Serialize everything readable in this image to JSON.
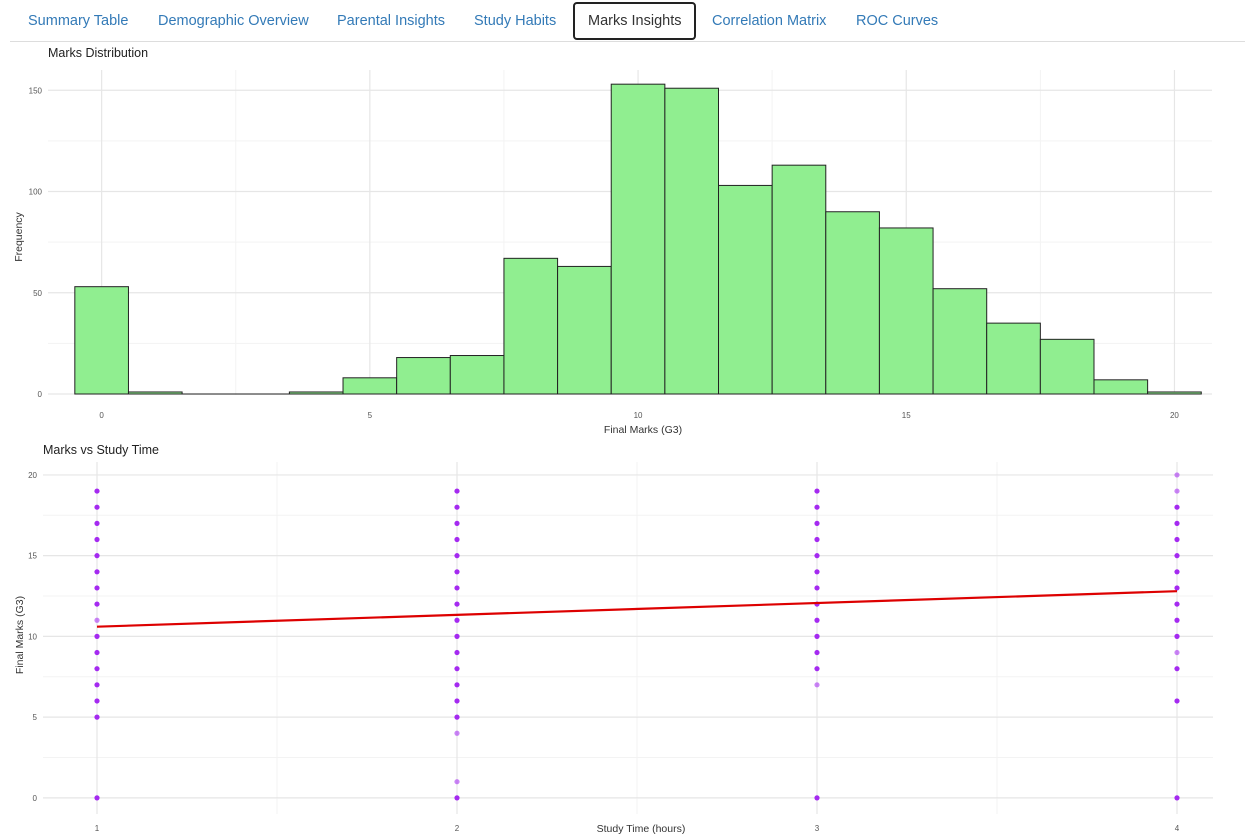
{
  "tabs": [
    {
      "label": "Summary Table",
      "active": false
    },
    {
      "label": "Demographic Overview",
      "active": false
    },
    {
      "label": "Parental Insights",
      "active": false
    },
    {
      "label": "Study Habits",
      "active": false
    },
    {
      "label": "Marks Insights",
      "active": true
    },
    {
      "label": "Correlation Matrix",
      "active": false
    },
    {
      "label": "ROC Curves",
      "active": false
    }
  ],
  "chart_data": [
    {
      "type": "bar",
      "title": "Marks Distribution",
      "xlabel": "Final Marks (G3)",
      "ylabel": "Frequency",
      "x": [
        0,
        1,
        2,
        3,
        4,
        5,
        6,
        7,
        8,
        9,
        10,
        11,
        12,
        13,
        14,
        15,
        16,
        17,
        18,
        19,
        20
      ],
      "values": [
        53,
        1,
        0,
        0,
        1,
        8,
        18,
        19,
        67,
        63,
        153,
        151,
        103,
        113,
        90,
        82,
        52,
        35,
        27,
        7,
        1
      ],
      "xticks": [
        0,
        5,
        10,
        15,
        20
      ],
      "yticks": [
        0,
        50,
        100,
        150
      ],
      "xlim": [
        -1,
        20.7
      ],
      "ylim": [
        0,
        160
      ],
      "bar_color": "#90ee90",
      "bar_edge": "#222222",
      "grid": true
    },
    {
      "type": "scatter",
      "title": "Marks vs Study Time",
      "xlabel": "Study Time (hours)",
      "ylabel": "Final Marks (G3)",
      "xticks": [
        1,
        2,
        3,
        4
      ],
      "yticks": [
        0,
        5,
        10,
        15,
        20
      ],
      "xlim": [
        0.85,
        4.1
      ],
      "ylim": [
        -1,
        20.8
      ],
      "point_color": "#a020f0",
      "points": [
        {
          "x": 1,
          "y": [
            0,
            5,
            6,
            7,
            8,
            9,
            10,
            11,
            12,
            13,
            14,
            15,
            16,
            17,
            18,
            19
          ]
        },
        {
          "x": 2,
          "y": [
            0,
            1,
            4,
            5,
            6,
            7,
            8,
            9,
            10,
            11,
            12,
            13,
            14,
            15,
            16,
            17,
            18,
            19
          ]
        },
        {
          "x": 3,
          "y": [
            0,
            7,
            8,
            9,
            10,
            11,
            12,
            13,
            14,
            15,
            16,
            17,
            18,
            19
          ]
        },
        {
          "x": 4,
          "y": [
            0,
            6,
            8,
            9,
            10,
            11,
            12,
            13,
            14,
            15,
            16,
            17,
            18,
            19,
            20
          ]
        }
      ],
      "faint_points": [
        {
          "x": 2,
          "y": 1
        },
        {
          "x": 2,
          "y": 4
        },
        {
          "x": 3,
          "y": 7
        },
        {
          "x": 4,
          "y": 9
        },
        {
          "x": 4,
          "y": 19
        },
        {
          "x": 4,
          "y": 20
        },
        {
          "x": 1,
          "y": 11
        }
      ],
      "trend_line": {
        "x": [
          1,
          4
        ],
        "y": [
          10.6,
          12.8
        ],
        "color": "#dd0000"
      },
      "grid": true
    }
  ]
}
